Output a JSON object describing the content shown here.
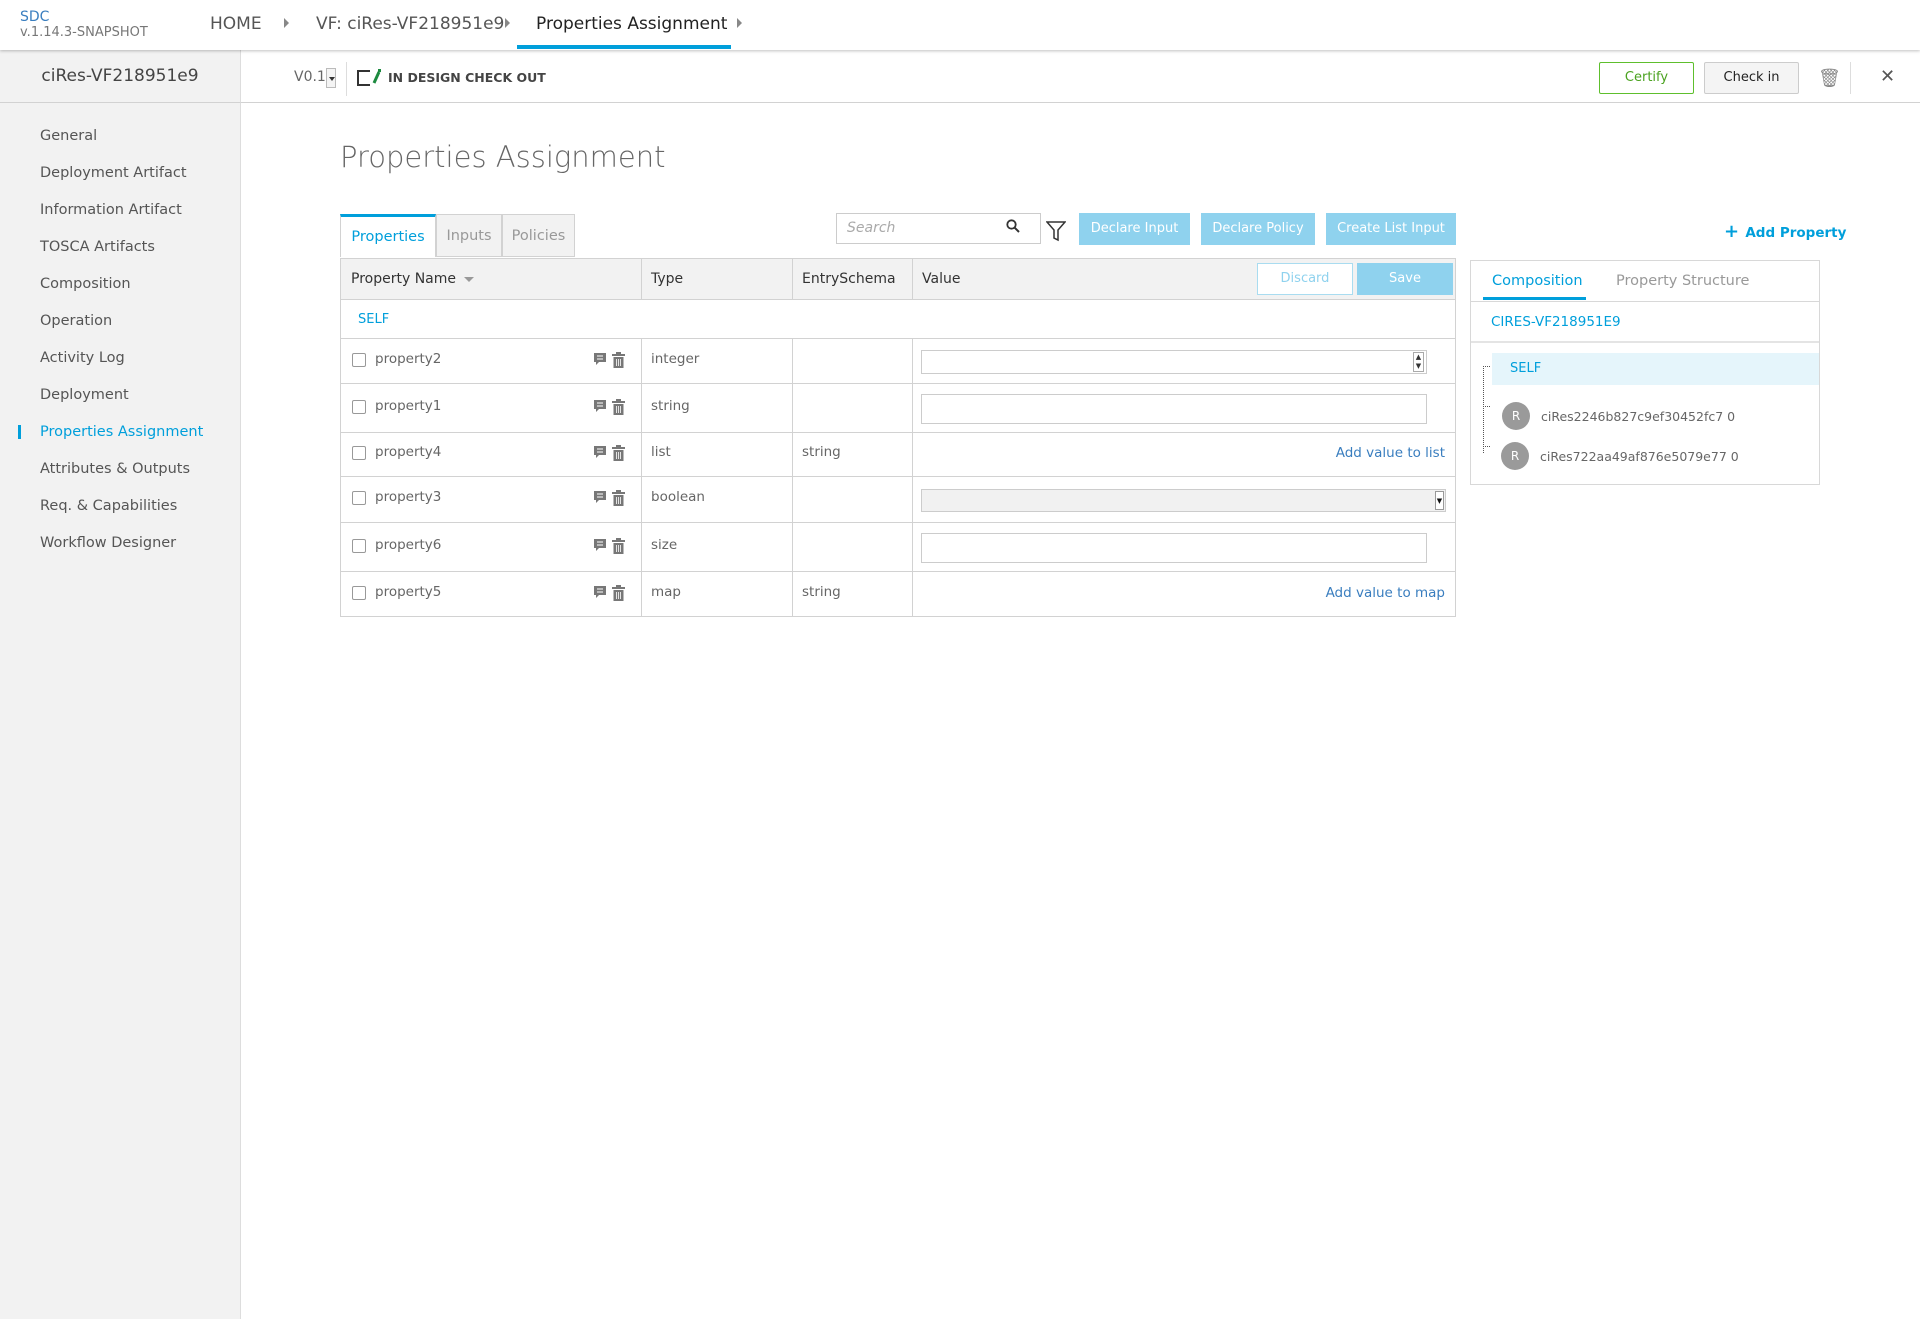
{
  "header": {
    "app_name": "SDC",
    "version": "v.1.14.3-SNAPSHOT",
    "breadcrumbs": [
      "HOME",
      "VF: ciRes-VF218951e9",
      "Properties Assignment"
    ]
  },
  "subbar": {
    "component_name": "ciRes-VF218951e9",
    "version": "V0.1",
    "status": "IN DESIGN CHECK OUT",
    "certify": "Certify",
    "check_in": "Check in"
  },
  "sidebar": {
    "items": [
      {
        "label": "General"
      },
      {
        "label": "Deployment Artifact"
      },
      {
        "label": "Information Artifact"
      },
      {
        "label": "TOSCA Artifacts"
      },
      {
        "label": "Composition"
      },
      {
        "label": "Operation"
      },
      {
        "label": "Activity Log"
      },
      {
        "label": "Deployment"
      },
      {
        "label": "Properties Assignment",
        "active": true
      },
      {
        "label": "Attributes & Outputs"
      },
      {
        "label": "Req. & Capabilities"
      },
      {
        "label": "Workflow Designer"
      }
    ]
  },
  "main": {
    "title": "Properties Assignment",
    "tabs": [
      "Properties",
      "Inputs",
      "Policies"
    ],
    "search_placeholder": "Search",
    "buttons": {
      "declare_input": "Declare Input",
      "declare_policy": "Declare Policy",
      "create_list_input": "Create List Input",
      "add_property": "Add Property",
      "discard": "Discard",
      "save": "Save"
    },
    "table": {
      "headers": [
        "Property Name",
        "Type",
        "EntrySchema",
        "Value"
      ],
      "group": "SELF",
      "rows": [
        {
          "name": "property2",
          "type": "integer",
          "entry_schema": "",
          "value_kind": "number"
        },
        {
          "name": "property1",
          "type": "string",
          "entry_schema": "",
          "value_kind": "text"
        },
        {
          "name": "property4",
          "type": "list",
          "entry_schema": "string",
          "value_kind": "link",
          "link": "Add value to list"
        },
        {
          "name": "property3",
          "type": "boolean",
          "entry_schema": "",
          "value_kind": "select"
        },
        {
          "name": "property6",
          "type": "size",
          "entry_schema": "",
          "value_kind": "text"
        },
        {
          "name": "property5",
          "type": "map",
          "entry_schema": "string",
          "value_kind": "link",
          "link": "Add value to map"
        }
      ]
    }
  },
  "right_panel": {
    "tabs": [
      "Composition",
      "Property Structure"
    ],
    "component": "CIRES-VF218951E9",
    "self": "SELF",
    "instances": [
      {
        "avatar": "R",
        "name": "ciRes2246b827c9ef30452fc7 0"
      },
      {
        "avatar": "R",
        "name": "ciRes722aa49af876e5079e77 0"
      }
    ]
  },
  "colors": {
    "accent": "#009fdb",
    "certify": "#4aa21f",
    "disabled_button": "#8fd2ee"
  }
}
